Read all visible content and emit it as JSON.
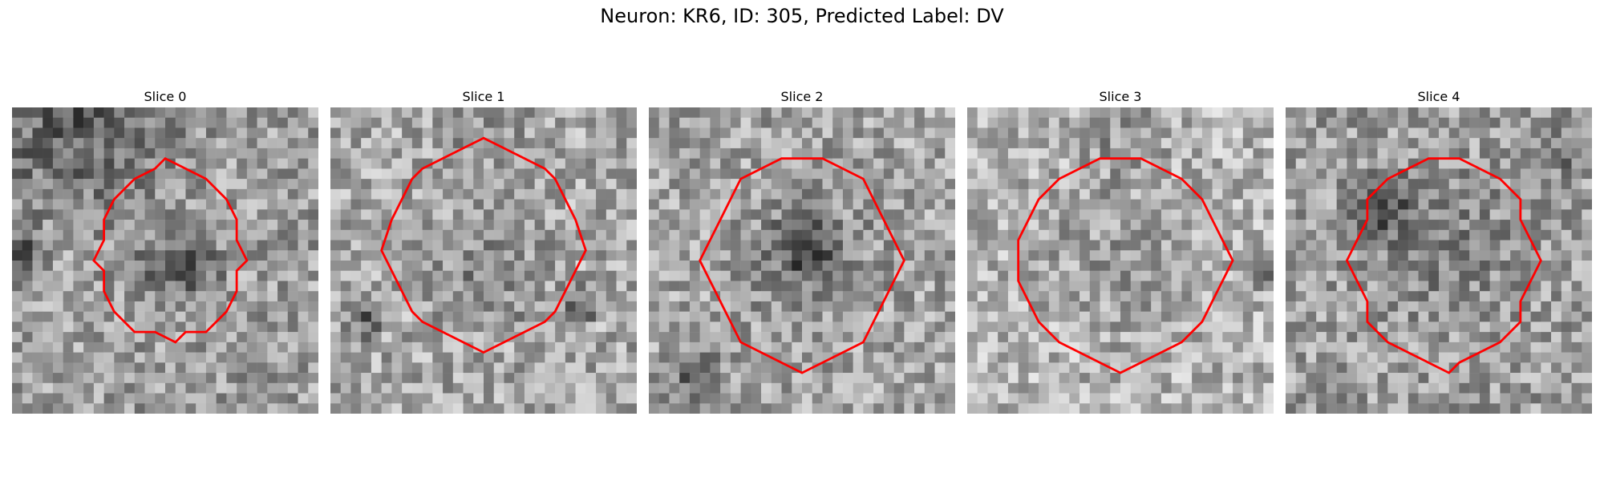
{
  "figure": {
    "title": "Neuron: KR6, ID: 305, Predicted Label: DV"
  },
  "colors": {
    "contour": "#ff0000",
    "colormap": "grayscale"
  },
  "slices": [
    {
      "label": "Slice 0"
    },
    {
      "label": "Slice 1"
    },
    {
      "label": "Slice 2"
    },
    {
      "label": "Slice 3"
    },
    {
      "label": "Slice 4"
    }
  ]
}
